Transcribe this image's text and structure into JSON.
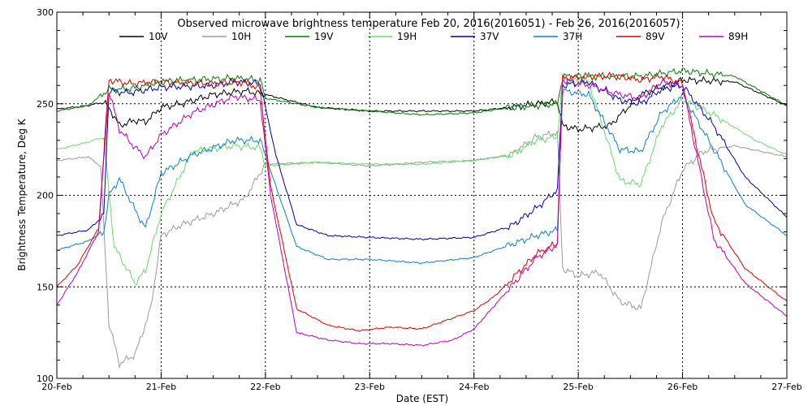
{
  "chart_data": {
    "type": "line",
    "title": "Observed microwave brightness temperature Feb 20, 2016(2016051) - Feb 26, 2016(2016057)",
    "xlabel": "Date (EST)",
    "ylabel": "Brightness Temperature, Deg K",
    "xlim": [
      "20-Feb",
      "27-Feb"
    ],
    "ylim": [
      100,
      300
    ],
    "x_ticks": [
      "20-Feb",
      "21-Feb",
      "22-Feb",
      "23-Feb",
      "24-Feb",
      "25-Feb",
      "26-Feb",
      "27-Feb"
    ],
    "y_ticks": [
      100,
      150,
      200,
      250,
      300
    ],
    "grid": "dotted at major ticks",
    "legend_position": "top",
    "x_unit": "days since 20-Feb",
    "series": [
      {
        "name": "10V",
        "color": "#000000",
        "points": [
          [
            0,
            247
          ],
          [
            0.3,
            249
          ],
          [
            0.45,
            251
          ],
          [
            0.52,
            246
          ],
          [
            0.6,
            238
          ],
          [
            0.75,
            241
          ],
          [
            0.85,
            240
          ],
          [
            1.0,
            248
          ],
          [
            1.2,
            250
          ],
          [
            1.5,
            255
          ],
          [
            1.8,
            257
          ],
          [
            2.0,
            255
          ],
          [
            2.5,
            248
          ],
          [
            3.0,
            246
          ],
          [
            3.5,
            246
          ],
          [
            4.0,
            246
          ],
          [
            4.35,
            248
          ],
          [
            4.6,
            250
          ],
          [
            4.8,
            251
          ],
          [
            4.85,
            238
          ],
          [
            5.0,
            236
          ],
          [
            5.3,
            238
          ],
          [
            5.6,
            255
          ],
          [
            6.0,
            263
          ],
          [
            6.5,
            262
          ],
          [
            7.0,
            249
          ]
        ]
      },
      {
        "name": "10H",
        "color": "#9b9b9b",
        "points": [
          [
            0,
            219
          ],
          [
            0.3,
            221
          ],
          [
            0.42,
            216
          ],
          [
            0.5,
            130
          ],
          [
            0.6,
            108
          ],
          [
            0.75,
            113
          ],
          [
            0.9,
            138
          ],
          [
            1.0,
            178
          ],
          [
            1.2,
            184
          ],
          [
            1.5,
            190
          ],
          [
            1.8,
            198
          ],
          [
            2.0,
            217
          ],
          [
            2.5,
            218
          ],
          [
            3.0,
            216
          ],
          [
            3.5,
            218
          ],
          [
            4.0,
            219
          ],
          [
            4.35,
            222
          ],
          [
            4.6,
            232
          ],
          [
            4.8,
            234
          ],
          [
            4.85,
            160
          ],
          [
            5.0,
            156
          ],
          [
            5.2,
            158
          ],
          [
            5.4,
            142
          ],
          [
            5.6,
            138
          ],
          [
            5.8,
            185
          ],
          [
            6.0,
            214
          ],
          [
            6.2,
            224
          ],
          [
            6.5,
            227
          ],
          [
            7.0,
            221
          ]
        ]
      },
      {
        "name": "19V",
        "color": "#008000",
        "points": [
          [
            0,
            246
          ],
          [
            0.3,
            249
          ],
          [
            0.5,
            258
          ],
          [
            0.7,
            258
          ],
          [
            1.0,
            262
          ],
          [
            1.3,
            263
          ],
          [
            1.7,
            264
          ],
          [
            1.95,
            263
          ],
          [
            2.0,
            253
          ],
          [
            2.5,
            248
          ],
          [
            3.0,
            246
          ],
          [
            3.5,
            244
          ],
          [
            4.0,
            245
          ],
          [
            4.35,
            248
          ],
          [
            4.6,
            249
          ],
          [
            4.8,
            250
          ],
          [
            4.85,
            265
          ],
          [
            5.2,
            265
          ],
          [
            5.6,
            265
          ],
          [
            6.0,
            268
          ],
          [
            6.5,
            265
          ],
          [
            7.0,
            249
          ]
        ]
      },
      {
        "name": "19H",
        "color": "#66dd66",
        "points": [
          [
            0,
            225
          ],
          [
            0.3,
            229
          ],
          [
            0.45,
            232
          ],
          [
            0.55,
            172
          ],
          [
            0.75,
            152
          ],
          [
            0.85,
            159
          ],
          [
            1.0,
            190
          ],
          [
            1.3,
            224
          ],
          [
            1.7,
            227
          ],
          [
            1.95,
            226
          ],
          [
            2.0,
            216
          ],
          [
            2.5,
            218
          ],
          [
            3.0,
            217
          ],
          [
            3.5,
            217
          ],
          [
            4.0,
            219
          ],
          [
            4.35,
            222
          ],
          [
            4.6,
            230
          ],
          [
            4.8,
            232
          ],
          [
            4.85,
            263
          ],
          [
            5.1,
            262
          ],
          [
            5.4,
            208
          ],
          [
            5.6,
            206
          ],
          [
            5.8,
            238
          ],
          [
            6.0,
            252
          ],
          [
            6.3,
            244
          ],
          [
            6.7,
            230
          ],
          [
            7.0,
            222
          ]
        ]
      },
      {
        "name": "37V",
        "color": "#0000aa",
        "points": [
          [
            0,
            178
          ],
          [
            0.3,
            181
          ],
          [
            0.45,
            189
          ],
          [
            0.5,
            257
          ],
          [
            0.7,
            256
          ],
          [
            1.0,
            259
          ],
          [
            1.5,
            260
          ],
          [
            1.7,
            262
          ],
          [
            1.95,
            261
          ],
          [
            2.1,
            222
          ],
          [
            2.3,
            184
          ],
          [
            2.6,
            178
          ],
          [
            3.0,
            177
          ],
          [
            3.5,
            176
          ],
          [
            4.0,
            177
          ],
          [
            4.35,
            183
          ],
          [
            4.6,
            193
          ],
          [
            4.8,
            203
          ],
          [
            4.85,
            260
          ],
          [
            5.1,
            262
          ],
          [
            5.4,
            252
          ],
          [
            5.6,
            250
          ],
          [
            5.8,
            258
          ],
          [
            6.0,
            260
          ],
          [
            6.3,
            238
          ],
          [
            6.6,
            210
          ],
          [
            7.0,
            188
          ]
        ]
      },
      {
        "name": "37H",
        "color": "#0b7fd6",
        "points": [
          [
            0,
            170
          ],
          [
            0.3,
            175
          ],
          [
            0.45,
            180
          ],
          [
            0.5,
            200
          ],
          [
            0.6,
            209
          ],
          [
            0.75,
            192
          ],
          [
            0.85,
            182
          ],
          [
            1.0,
            212
          ],
          [
            1.3,
            222
          ],
          [
            1.7,
            230
          ],
          [
            1.95,
            230
          ],
          [
            2.1,
            205
          ],
          [
            2.3,
            172
          ],
          [
            2.6,
            165
          ],
          [
            3.0,
            165
          ],
          [
            3.5,
            163
          ],
          [
            4.0,
            166
          ],
          [
            4.35,
            173
          ],
          [
            4.6,
            178
          ],
          [
            4.8,
            181
          ],
          [
            4.85,
            257
          ],
          [
            5.1,
            255
          ],
          [
            5.4,
            225
          ],
          [
            5.6,
            224
          ],
          [
            5.8,
            245
          ],
          [
            6.0,
            255
          ],
          [
            6.3,
            225
          ],
          [
            6.6,
            195
          ],
          [
            7.0,
            178
          ]
        ]
      },
      {
        "name": "89V",
        "color": "#dd0000",
        "points": [
          [
            0,
            150
          ],
          [
            0.2,
            162
          ],
          [
            0.4,
            182
          ],
          [
            0.5,
            263
          ],
          [
            0.7,
            261
          ],
          [
            1.0,
            262
          ],
          [
            1.5,
            261
          ],
          [
            1.8,
            262
          ],
          [
            1.95,
            258
          ],
          [
            2.05,
            205
          ],
          [
            2.3,
            138
          ],
          [
            2.6,
            129
          ],
          [
            2.9,
            126
          ],
          [
            3.2,
            128
          ],
          [
            3.5,
            127
          ],
          [
            3.8,
            133
          ],
          [
            4.0,
            137
          ],
          [
            4.2,
            145
          ],
          [
            4.6,
            168
          ],
          [
            4.8,
            174
          ],
          [
            4.85,
            264
          ],
          [
            5.1,
            265
          ],
          [
            5.4,
            265
          ],
          [
            5.6,
            263
          ],
          [
            5.8,
            265
          ],
          [
            6.0,
            261
          ],
          [
            6.3,
            186
          ],
          [
            6.6,
            160
          ],
          [
            7.0,
            142
          ]
        ]
      },
      {
        "name": "89H",
        "color": "#bb00bb",
        "points": [
          [
            0,
            140
          ],
          [
            0.2,
            158
          ],
          [
            0.4,
            180
          ],
          [
            0.5,
            257
          ],
          [
            0.6,
            236
          ],
          [
            0.75,
            226
          ],
          [
            0.85,
            221
          ],
          [
            1.0,
            233
          ],
          [
            1.3,
            245
          ],
          [
            1.7,
            254
          ],
          [
            1.95,
            252
          ],
          [
            2.05,
            200
          ],
          [
            2.3,
            125
          ],
          [
            2.6,
            121
          ],
          [
            2.9,
            119
          ],
          [
            3.2,
            119
          ],
          [
            3.5,
            118
          ],
          [
            3.8,
            121
          ],
          [
            4.0,
            127
          ],
          [
            4.2,
            140
          ],
          [
            4.6,
            166
          ],
          [
            4.8,
            173
          ],
          [
            4.85,
            263
          ],
          [
            5.1,
            260
          ],
          [
            5.4,
            255
          ],
          [
            5.6,
            253
          ],
          [
            5.8,
            262
          ],
          [
            6.0,
            260
          ],
          [
            6.3,
            176
          ],
          [
            6.6,
            152
          ],
          [
            7.0,
            134
          ]
        ]
      }
    ]
  }
}
